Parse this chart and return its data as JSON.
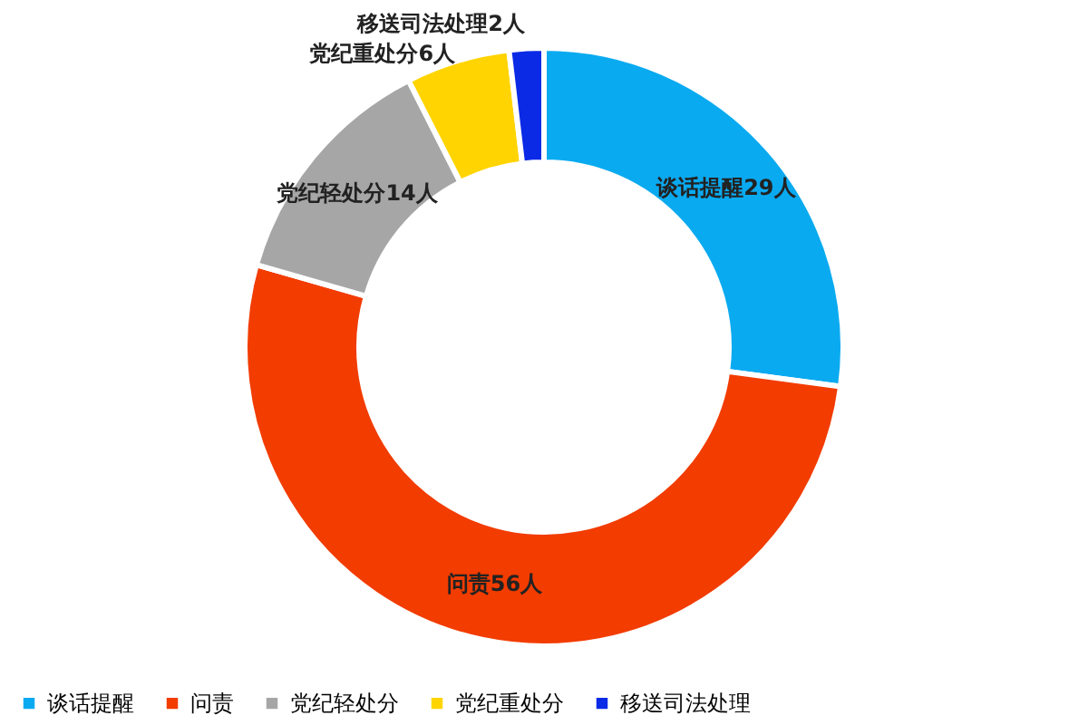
{
  "chart_data": {
    "type": "donut",
    "categories": [
      "谈话提醒",
      "问责",
      "党纪轻处分",
      "党纪重处分",
      "移送司法处理"
    ],
    "values": [
      29,
      56,
      14,
      6,
      2
    ],
    "colors": [
      "#0aaaf0",
      "#f23c00",
      "#a6a6a6",
      "#ffd400",
      "#0a2ae6"
    ],
    "value_labels": [
      "谈话提醒29人",
      "问责56人",
      "党纪轻处分14人",
      "党纪重处分6人",
      "移送司法处理2人"
    ],
    "legend": "bottom"
  }
}
